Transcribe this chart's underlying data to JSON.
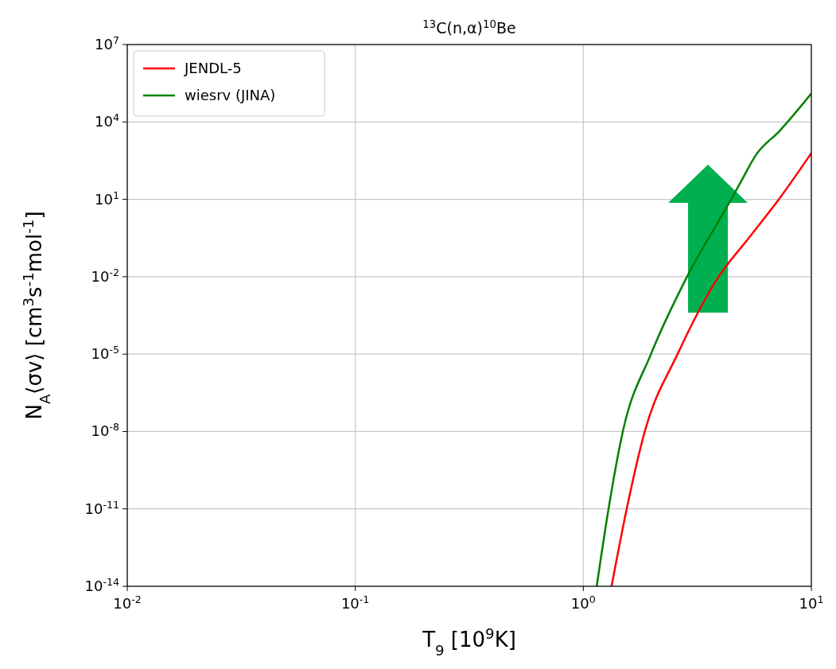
{
  "chart_data": {
    "type": "line",
    "title": "$^{13}$C(n,α)$^{10}$Be",
    "xlabel": "T$_{9}$ [10$^{9}$K]",
    "ylabel": "N$_{A}$⟨σv⟩ [cm$^{3}$s$^{-1}$mol$^{-1}$]",
    "log": "xy",
    "grid": true,
    "legend": "top left",
    "xlim": [
      0.01,
      10
    ],
    "xticks": [
      {
        "value": 0.01,
        "label": "10$^{-2}$"
      },
      {
        "value": 0.1,
        "label": "10$^{-1}$"
      },
      {
        "value": 1,
        "label": "10$^{0}$"
      },
      {
        "value": 10,
        "label": "10$^{1}$"
      }
    ],
    "ylim": [
      1e-14,
      10000000.0
    ],
    "yticks": [
      {
        "value": 1e-14,
        "label": "10$^{-14}$"
      },
      {
        "value": 1e-11,
        "label": "10$^{-11}$"
      },
      {
        "value": 1e-08,
        "label": "10$^{-8}$"
      },
      {
        "value": 1e-05,
        "label": "10$^{-5}$"
      },
      {
        "value": 0.01,
        "label": "10$^{-2}$"
      },
      {
        "value": 10,
        "label": "10$^{1}$"
      },
      {
        "value": 10000,
        "label": "10$^{4}$"
      },
      {
        "value": 10000000,
        "label": "10$^{7}$"
      }
    ],
    "series": [
      {
        "name": "JENDL-5",
        "color": "#ff0000",
        "x": [
          1.33,
          1.55,
          1.86,
          2.59,
          3.92,
          5.29,
          7.26,
          10
        ],
        "values": [
          1e-14,
          1e-11,
          1e-08,
          1e-05,
          0.01,
          0.3,
          11,
          620
        ]
      },
      {
        "name": "wiesrv (JINA)",
        "color": "#008000",
        "x": [
          1.145,
          1.29,
          1.49,
          1.98,
          2.85,
          4.45,
          4.89,
          5.73,
          7.26,
          10
        ],
        "values": [
          1e-14,
          1e-11,
          1e-08,
          1e-05,
          0.01,
          10,
          45,
          540,
          4500,
          126000
        ]
      }
    ]
  }
}
